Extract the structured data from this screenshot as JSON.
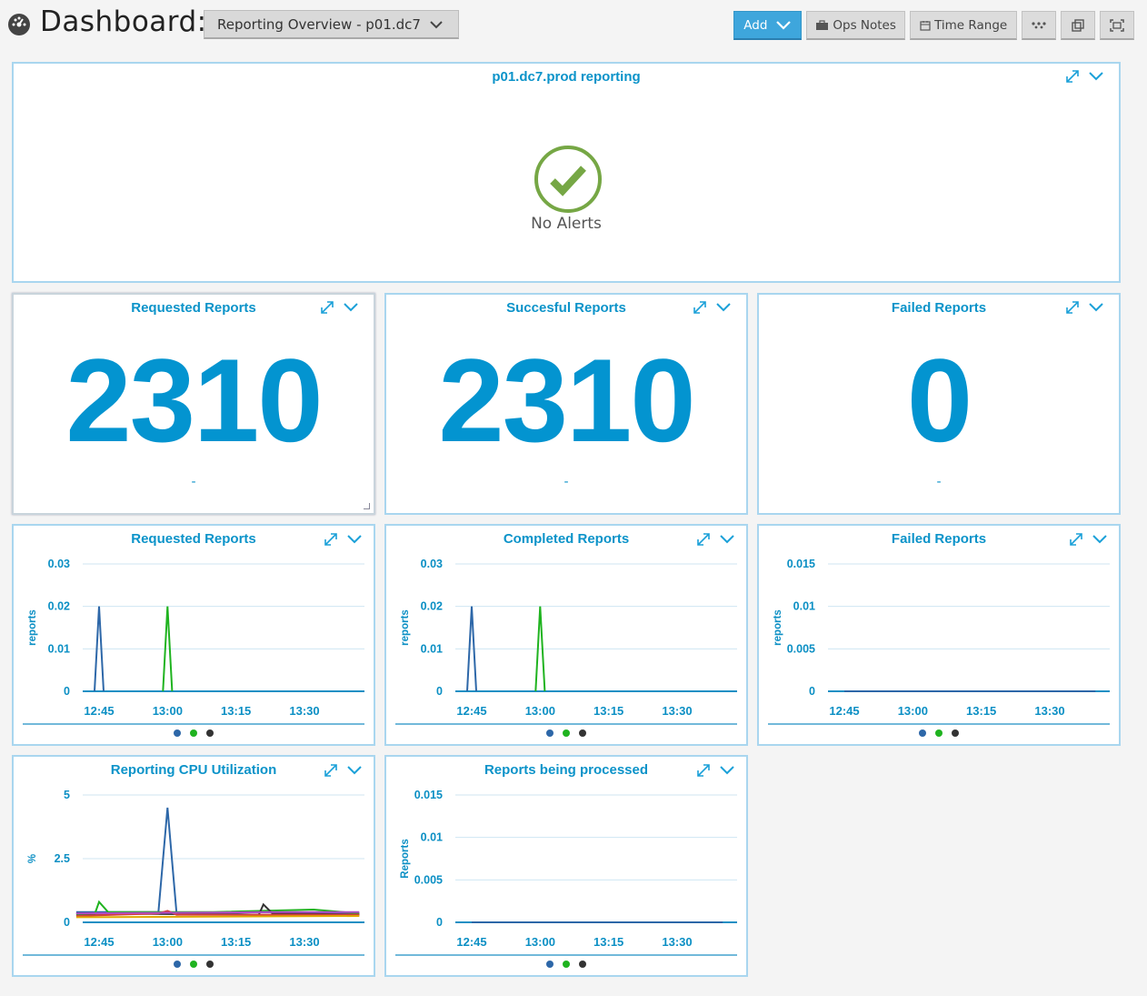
{
  "header": {
    "title": "Dashboard:",
    "selected_dashboard": "Reporting Overview - p01.dc7",
    "buttons": {
      "add": "Add",
      "ops_notes": "Ops Notes",
      "time_range": "Time Range"
    }
  },
  "colors": {
    "accent": "#0b93c9",
    "panel_border": "#a9d6ef",
    "ok_green": "#76a745",
    "series_blue": "#2d67a8",
    "series_green": "#1fb31f",
    "series_dark": "#333333"
  },
  "alerts_panel": {
    "title": "p01.dc7.prod reporting",
    "status_text": "No Alerts",
    "status_icon": "check-circle-icon"
  },
  "big_numbers": [
    {
      "title": "Requested Reports",
      "value": "2310",
      "sub": "-"
    },
    {
      "title": "Succesful Reports",
      "value": "2310",
      "sub": "-"
    },
    {
      "title": "Failed Reports",
      "value": "0",
      "sub": "-"
    }
  ],
  "charts": [
    {
      "title": "Requested Reports",
      "chart_data": {
        "type": "line",
        "ylabel": "reports",
        "yticks": [
          "0.03",
          "0.02",
          "0.01",
          "0"
        ],
        "ylim": [
          0,
          0.03
        ],
        "xticks": [
          "12:45",
          "13:00",
          "13:15",
          "13:30"
        ],
        "series": [
          {
            "color": "#2d67a8",
            "points": [
              [
                "12:44",
                0
              ],
              [
                "12:45",
                0.02
              ],
              [
                "12:46",
                0
              ]
            ]
          },
          {
            "color": "#1fb31f",
            "points": [
              [
                "12:59",
                0
              ],
              [
                "13:00",
                0.02
              ],
              [
                "13:01",
                0
              ]
            ]
          }
        ],
        "legend_colors": [
          "#2d67a8",
          "#1fb31f",
          "#333333"
        ]
      }
    },
    {
      "title": "Completed Reports",
      "chart_data": {
        "type": "line",
        "ylabel": "reports",
        "yticks": [
          "0.03",
          "0.02",
          "0.01",
          "0"
        ],
        "ylim": [
          0,
          0.03
        ],
        "xticks": [
          "12:45",
          "13:00",
          "13:15",
          "13:30"
        ],
        "series": [
          {
            "color": "#2d67a8",
            "points": [
              [
                "12:44",
                0
              ],
              [
                "12:45",
                0.02
              ],
              [
                "12:46",
                0
              ]
            ]
          },
          {
            "color": "#1fb31f",
            "points": [
              [
                "12:59",
                0
              ],
              [
                "13:00",
                0.02
              ],
              [
                "13:01",
                0
              ]
            ]
          }
        ],
        "legend_colors": [
          "#2d67a8",
          "#1fb31f",
          "#333333"
        ]
      }
    },
    {
      "title": "Failed Reports",
      "chart_data": {
        "type": "line",
        "ylabel": "reports",
        "yticks": [
          "0.015",
          "0.01",
          "0.005",
          "0"
        ],
        "ylim": [
          0,
          0.015
        ],
        "xticks": [
          "12:45",
          "13:00",
          "13:15",
          "13:30"
        ],
        "series": [
          {
            "color": "#2d67a8",
            "points": [
              [
                "12:45",
                0
              ],
              [
                "13:40",
                0
              ]
            ]
          }
        ],
        "legend_colors": [
          "#2d67a8",
          "#1fb31f",
          "#333333"
        ]
      }
    },
    {
      "title": "Reporting CPU Utilization",
      "chart_data": {
        "type": "line",
        "ylabel": "%",
        "yticks": [
          "5",
          "2.5",
          "0"
        ],
        "ylim": [
          0,
          5
        ],
        "xticks": [
          "12:45",
          "13:00",
          "13:15",
          "13:30"
        ],
        "series": [
          {
            "color": "#2d67a8",
            "points": [
              [
                "12:40",
                0.4
              ],
              [
                "12:58",
                0.4
              ],
              [
                "13:00",
                4.5
              ],
              [
                "13:02",
                0.3
              ],
              [
                "13:20",
                0.4
              ],
              [
                "13:42",
                0.35
              ]
            ]
          },
          {
            "color": "#1fb31f",
            "points": [
              [
                "12:40",
                0.3
              ],
              [
                "12:44",
                0.3
              ],
              [
                "12:45",
                0.8
              ],
              [
                "12:47",
                0.4
              ],
              [
                "13:10",
                0.4
              ],
              [
                "13:32",
                0.5
              ],
              [
                "13:42",
                0.35
              ]
            ]
          },
          {
            "color": "#333333",
            "points": [
              [
                "12:40",
                0.35
              ],
              [
                "13:20",
                0.3
              ],
              [
                "13:21",
                0.7
              ],
              [
                "13:23",
                0.35
              ],
              [
                "13:42",
                0.3
              ]
            ]
          },
          {
            "color": "#d43f3f",
            "points": [
              [
                "12:40",
                0.25
              ],
              [
                "12:58",
                0.35
              ],
              [
                "13:00",
                0.45
              ],
              [
                "13:02",
                0.3
              ],
              [
                "13:42",
                0.3
              ]
            ]
          },
          {
            "color": "#e0a800",
            "points": [
              [
                "12:40",
                0.2
              ],
              [
                "13:42",
                0.25
              ]
            ]
          },
          {
            "color": "#b04bc8",
            "points": [
              [
                "12:40",
                0.35
              ],
              [
                "13:22",
                0.4
              ],
              [
                "13:42",
                0.4
              ]
            ]
          }
        ],
        "legend_colors": [
          "#2d67a8",
          "#1fb31f",
          "#333333"
        ]
      }
    },
    {
      "title": "Reports being processed",
      "chart_data": {
        "type": "line",
        "ylabel": "Reports",
        "yticks": [
          "0.015",
          "0.01",
          "0.005",
          "0"
        ],
        "ylim": [
          0,
          0.015
        ],
        "xticks": [
          "12:45",
          "13:00",
          "13:15",
          "13:30"
        ],
        "series": [
          {
            "color": "#2d67a8",
            "points": [
              [
                "12:45",
                0
              ],
              [
                "13:40",
                0
              ]
            ]
          }
        ],
        "legend_colors": [
          "#2d67a8",
          "#1fb31f",
          "#333333"
        ]
      }
    }
  ]
}
